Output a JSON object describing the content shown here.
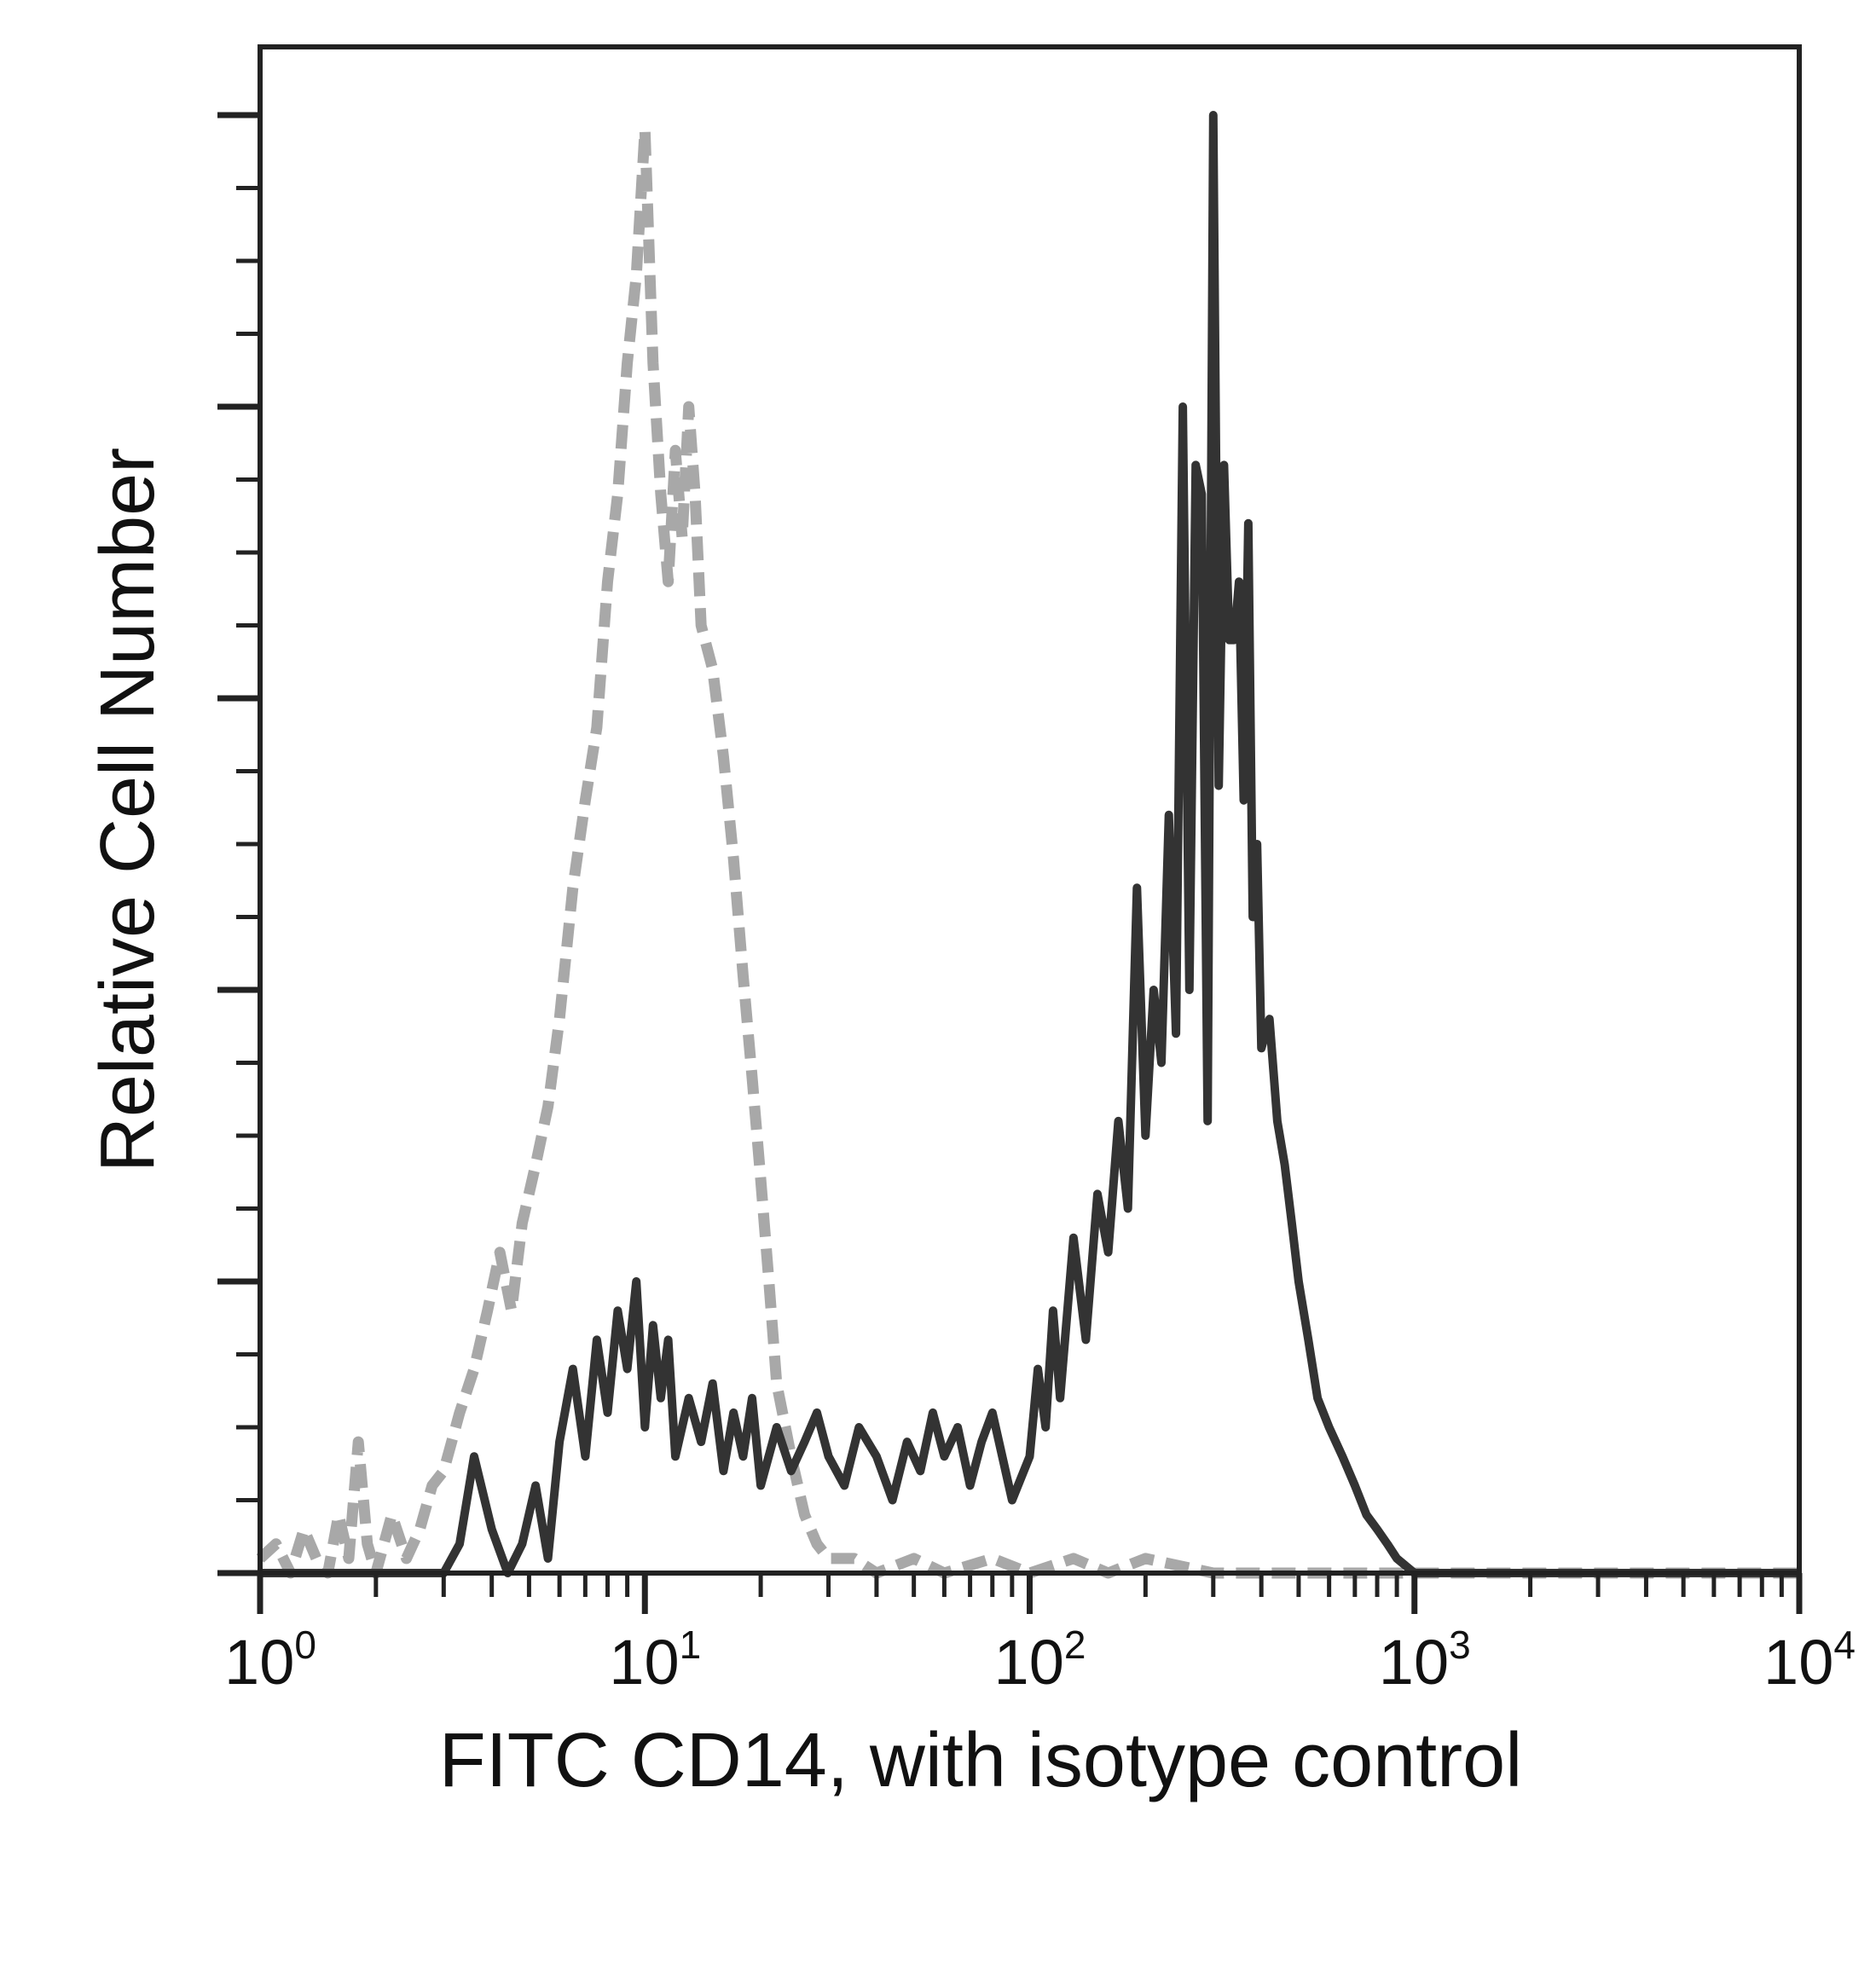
{
  "chart_data": {
    "type": "line",
    "title": "",
    "xlabel": "FITC CD14, with isotype control",
    "ylabel": "Relative Cell Number",
    "x_scale": "log",
    "xlim": [
      1,
      10000
    ],
    "ylim": [
      0,
      100
    ],
    "x_ticks": [
      {
        "base": "10",
        "exp": "0"
      },
      {
        "base": "10",
        "exp": "1"
      },
      {
        "base": "10",
        "exp": "2"
      },
      {
        "base": "10",
        "exp": "3"
      },
      {
        "base": "10",
        "exp": "4"
      }
    ],
    "y_tick_labels": "none",
    "grid": false,
    "legend": "none",
    "series": [
      {
        "style": "dashed",
        "color": "#a8a8a8",
        "x": [
          1.0,
          1.1,
          1.2,
          1.3,
          1.4,
          1.5,
          1.6,
          1.7,
          1.8,
          1.9,
          2.0,
          2.2,
          2.4,
          2.6,
          2.8,
          3.0,
          3.3,
          3.6,
          3.9,
          4.2,
          4.5,
          4.8,
          5.2,
          5.6,
          6.0,
          6.5,
          7.0,
          7.5,
          8.0,
          8.5,
          9.0,
          9.5,
          10.0,
          10.5,
          11.0,
          11.5,
          12.0,
          12.5,
          13.0,
          13.5,
          14.0,
          15.0,
          16.0,
          17.0,
          18.0,
          19.0,
          20.0,
          21.0,
          22.0,
          24.0,
          26.0,
          28.0,
          30.0,
          35.0,
          40.0,
          50.0,
          60.0,
          80.0,
          100.0,
          130.0,
          160.0,
          200.0,
          300.0,
          500.0,
          1000.0,
          10000.0
        ],
        "values": [
          1,
          2,
          0,
          3,
          1,
          0,
          4,
          1,
          9,
          2,
          0,
          4,
          1,
          3,
          6,
          7,
          11,
          14,
          18,
          22,
          18,
          24,
          28,
          32,
          38,
          47,
          53,
          58,
          68,
          74,
          83,
          89,
          99,
          83,
          74,
          68,
          77,
          71,
          80,
          74,
          65,
          62,
          56,
          49,
          41,
          34,
          27,
          20,
          13,
          8,
          4,
          2,
          1,
          1,
          0,
          1,
          0,
          1,
          0,
          1,
          0,
          1,
          0,
          0,
          0,
          0
        ]
      },
      {
        "style": "solid",
        "color": "#333333",
        "x": [
          1.0,
          1.2,
          1.4,
          1.6,
          1.8,
          2.0,
          2.3,
          2.6,
          3.0,
          3.3,
          3.6,
          4.0,
          4.4,
          4.8,
          5.2,
          5.6,
          6.0,
          6.5,
          7.0,
          7.5,
          8.0,
          8.5,
          9.0,
          9.5,
          10.0,
          10.5,
          11.0,
          11.5,
          12.0,
          13.0,
          14.0,
          15.0,
          16.0,
          17.0,
          18.0,
          19.0,
          20.0,
          22.0,
          24.0,
          26.0,
          28.0,
          30.0,
          33.0,
          36.0,
          40.0,
          44.0,
          48.0,
          52.0,
          56.0,
          60.0,
          65.0,
          70.0,
          75.0,
          80.0,
          90.0,
          100.0,
          105.0,
          110.0,
          115.0,
          120.0,
          130.0,
          140.0,
          150.0,
          160.0,
          170.0,
          180.0,
          190.0,
          200.0,
          210.0,
          220.0,
          230.0,
          240.0,
          250.0,
          260.0,
          270.0,
          280.0,
          290.0,
          300.0,
          310.0,
          320.0,
          330.0,
          340.0,
          350.0,
          360.0,
          370.0,
          380.0,
          390.0,
          400.0,
          420.0,
          440.0,
          460.0,
          480.0,
          500.0,
          530.0,
          560.0,
          600.0,
          650.0,
          700.0,
          750.0,
          800.0,
          850.0,
          900.0,
          1000.0,
          2000.0,
          5000.0,
          10000.0
        ],
        "values": [
          0,
          0,
          0,
          0,
          0,
          0,
          0,
          0,
          0,
          2,
          8,
          3,
          0,
          2,
          6,
          1,
          9,
          14,
          8,
          16,
          11,
          18,
          14,
          20,
          10,
          17,
          12,
          16,
          8,
          12,
          9,
          13,
          7,
          11,
          8,
          12,
          6,
          10,
          7,
          9,
          11,
          8,
          6,
          10,
          8,
          5,
          9,
          7,
          11,
          8,
          10,
          6,
          9,
          11,
          5,
          8,
          14,
          10,
          18,
          12,
          23,
          16,
          26,
          22,
          31,
          25,
          47,
          30,
          40,
          35,
          52,
          37,
          80,
          40,
          76,
          74,
          31,
          100,
          54,
          76,
          64,
          64,
          68,
          53,
          72,
          45,
          50,
          36,
          38,
          31,
          28,
          24,
          20,
          16,
          12,
          10,
          8,
          6,
          4,
          3,
          2,
          1,
          0,
          0,
          0,
          0
        ]
      }
    ]
  }
}
